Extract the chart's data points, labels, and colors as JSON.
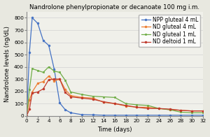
{
  "title": "Nandrolone phenylpropionate or decanoate 100 mg i.m.",
  "xlabel": "Time (days)",
  "ylabel": "Nandrolone levels (ng/dL)",
  "series": {
    "NPP gluteal 4 mL": {
      "color": "#4472C4",
      "marker": "o",
      "x": [
        0,
        0.5,
        1,
        2,
        3,
        4,
        5,
        6,
        7,
        8,
        10,
        12,
        14,
        16,
        18,
        20,
        22,
        24,
        26,
        28,
        30,
        32
      ],
      "y": [
        0,
        520,
        800,
        755,
        615,
        575,
        380,
        105,
        50,
        25,
        10,
        8,
        5,
        5,
        5,
        5,
        5,
        5,
        5,
        5,
        5,
        5
      ]
    },
    "ND gluteal 4 mL": {
      "color": "#ED7D31",
      "marker": "o",
      "x": [
        0,
        0.5,
        1,
        2,
        3,
        4,
        5,
        6,
        7,
        8,
        10,
        12,
        14,
        16,
        18,
        20,
        22,
        24,
        26,
        28,
        30,
        32
      ],
      "y": [
        0,
        130,
        195,
        265,
        280,
        325,
        285,
        300,
        215,
        165,
        150,
        145,
        110,
        100,
        80,
        70,
        70,
        60,
        50,
        45,
        40,
        40
      ]
    },
    "ND gluteal 1 mL": {
      "color": "#70AD47",
      "marker": "s",
      "x": [
        0,
        0.5,
        1,
        2,
        3,
        4,
        5,
        6,
        7,
        8,
        10,
        12,
        14,
        16,
        18,
        20,
        22,
        24,
        26,
        28,
        30,
        32
      ],
      "y": [
        0,
        215,
        385,
        370,
        355,
        400,
        365,
        355,
        290,
        195,
        175,
        160,
        155,
        150,
        100,
        90,
        85,
        60,
        50,
        30,
        25,
        25
      ]
    },
    "ND deltoid 1 mL": {
      "color": "#C0392B",
      "marker": "o",
      "x": [
        0,
        0.5,
        1,
        2,
        3,
        4,
        5,
        6,
        7,
        8,
        10,
        12,
        14,
        16,
        18,
        20,
        22,
        24,
        26,
        28,
        30,
        32
      ],
      "y": [
        0,
        55,
        185,
        195,
        220,
        295,
        300,
        300,
        190,
        155,
        145,
        135,
        115,
        100,
        85,
        70,
        60,
        60,
        55,
        45,
        40,
        40
      ]
    }
  },
  "xlim": [
    0,
    32
  ],
  "ylim": [
    0,
    850
  ],
  "xticks": [
    0,
    2,
    4,
    6,
    8,
    10,
    12,
    14,
    16,
    18,
    20,
    22,
    24,
    26,
    28,
    30,
    32
  ],
  "yticks": [
    0,
    100,
    200,
    300,
    400,
    500,
    600,
    700,
    800
  ],
  "background_color": "#e8e8e0",
  "plot_bg_color": "#f0f0ea",
  "title_fontsize": 6.2,
  "axis_label_fontsize": 6.0,
  "tick_fontsize": 5.2,
  "legend_fontsize": 5.5
}
